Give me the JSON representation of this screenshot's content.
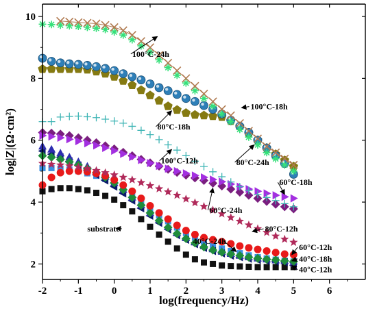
{
  "chart_data": {
    "type": "scatter",
    "title": "",
    "xlabel": "log(frequency/Hz)",
    "ylabel": "log|Z|(Ω·cm²)",
    "xlim": [
      -2,
      7
    ],
    "ylim": [
      1.5,
      10.4
    ],
    "x_ticks": [
      "-2",
      "-1",
      "0",
      "1",
      "2",
      "3",
      "4",
      "5",
      "6"
    ],
    "y_ticks": [
      "2",
      "4",
      "6",
      "8",
      "10"
    ],
    "grid": false,
    "legend": "none (inline annotations with arrows)",
    "x_values": [
      -2.0,
      -1.75,
      -1.5,
      -1.25,
      -1.0,
      -0.75,
      -0.5,
      -0.25,
      0.0,
      0.25,
      0.5,
      0.75,
      1.0,
      1.25,
      1.5,
      1.75,
      2.0,
      2.25,
      2.5,
      2.75,
      3.0,
      3.25,
      3.5,
      3.75,
      4.0,
      4.25,
      4.5,
      4.75,
      5.0
    ],
    "series": [
      {
        "name": "100°C-24h",
        "marker": "x",
        "color": "#b07a50",
        "values": [
          null,
          null,
          9.85,
          9.83,
          9.81,
          9.79,
          9.77,
          9.72,
          9.65,
          9.55,
          9.4,
          9.2,
          9.0,
          8.75,
          8.5,
          8.25,
          8.0,
          7.75,
          7.5,
          7.25,
          7.0,
          6.8,
          6.55,
          6.3,
          6.05,
          5.8,
          5.6,
          5.4,
          5.2
        ]
      },
      {
        "name": "",
        "marker": "star-burst",
        "color": "#35e07a",
        "values": [
          9.75,
          9.74,
          9.72,
          9.7,
          9.68,
          9.65,
          9.62,
          9.58,
          9.5,
          9.4,
          9.25,
          9.05,
          8.85,
          8.6,
          8.35,
          8.1,
          7.85,
          7.6,
          7.35,
          7.1,
          6.85,
          6.6,
          6.35,
          6.1,
          5.85,
          5.6,
          5.4,
          5.2,
          5.0
        ]
      },
      {
        "name": "100°C-18h",
        "marker": "sphere",
        "color": "#2e7fb8",
        "values": [
          8.65,
          8.55,
          8.5,
          8.47,
          8.45,
          8.42,
          8.38,
          8.32,
          8.25,
          8.15,
          8.05,
          7.95,
          7.82,
          7.7,
          7.6,
          7.48,
          7.35,
          7.25,
          7.12,
          7.0,
          6.85,
          6.65,
          6.45,
          6.25,
          6.0,
          5.75,
          5.5,
          5.25,
          4.9
        ]
      },
      {
        "name": "80°C-18h",
        "marker": "pentagon",
        "color": "#857a12",
        "values": [
          8.3,
          8.3,
          8.3,
          8.3,
          8.3,
          8.28,
          8.22,
          8.15,
          8.05,
          7.92,
          7.78,
          7.62,
          7.45,
          7.28,
          7.1,
          6.98,
          6.88,
          6.82,
          6.8,
          6.78,
          6.75,
          6.62,
          6.45,
          6.22,
          6.0,
          5.75,
          5.55,
          5.35,
          5.15
        ]
      },
      {
        "name": "100°C-12h",
        "marker": "plus",
        "color": "#3fb5b5",
        "values": [
          6.6,
          6.6,
          6.75,
          6.77,
          6.78,
          6.76,
          6.73,
          6.68,
          6.62,
          6.55,
          6.45,
          6.32,
          6.18,
          6.02,
          5.85,
          5.68,
          5.5,
          5.32,
          5.15,
          4.98,
          4.82,
          4.65,
          4.5,
          4.38,
          4.25,
          4.15,
          4.05,
          3.95,
          3.85
        ]
      },
      {
        "name": "60°C-18h",
        "marker": "triangle-right",
        "color": "#a32fe0",
        "values": [
          6.15,
          6.12,
          6.08,
          6.03,
          5.97,
          5.9,
          5.83,
          5.75,
          5.66,
          5.56,
          5.46,
          5.36,
          5.26,
          5.17,
          5.08,
          5.0,
          4.93,
          4.86,
          4.8,
          4.73,
          4.66,
          4.58,
          4.5,
          4.42,
          4.35,
          4.28,
          4.22,
          4.17,
          4.12
        ]
      },
      {
        "name": "60°C-24h",
        "marker": "diamond",
        "color": "#7a1e7f",
        "values": [
          6.25,
          6.23,
          6.2,
          6.15,
          6.08,
          6.0,
          5.92,
          5.82,
          5.72,
          5.61,
          5.5,
          5.38,
          5.27,
          5.16,
          5.06,
          4.96,
          4.87,
          4.78,
          4.7,
          4.61,
          4.52,
          4.42,
          4.32,
          4.22,
          4.12,
          4.02,
          3.93,
          3.85,
          3.78
        ]
      },
      {
        "name": "80°C-12h",
        "marker": "star",
        "color": "#b02a5a",
        "values": [
          5.25,
          5.22,
          5.2,
          5.17,
          5.13,
          5.08,
          5.02,
          4.95,
          4.88,
          4.8,
          4.72,
          4.63,
          4.53,
          4.43,
          4.33,
          4.22,
          4.1,
          3.98,
          3.86,
          3.74,
          3.62,
          3.5,
          3.38,
          3.26,
          3.14,
          3.02,
          2.9,
          2.8,
          2.7
        ]
      },
      {
        "name": "60°C-12h",
        "marker": "circle",
        "color": "#e81a1a",
        "values": [
          4.55,
          4.8,
          4.95,
          5.0,
          5.0,
          4.98,
          4.93,
          4.85,
          4.72,
          4.55,
          4.35,
          4.12,
          3.88,
          3.65,
          3.45,
          3.25,
          3.08,
          2.95,
          2.85,
          2.78,
          2.72,
          2.65,
          2.58,
          2.52,
          2.47,
          2.42,
          2.37,
          2.32,
          2.3
        ]
      },
      {
        "name": "40°C-24h",
        "marker": "diamond",
        "color": "#1f8c3c",
        "values": [
          5.5,
          5.45,
          5.38,
          5.3,
          5.2,
          5.08,
          4.95,
          4.8,
          4.62,
          4.4,
          4.15,
          3.9,
          3.65,
          3.4,
          3.18,
          2.98,
          2.82,
          2.68,
          2.55,
          2.45,
          2.38,
          2.32,
          2.27,
          2.22,
          2.18,
          2.15,
          2.13,
          2.1,
          2.08
        ]
      },
      {
        "name": "40°C-18h",
        "marker": "triangle-up",
        "color": "#2d2db0",
        "values": [
          5.8,
          5.7,
          5.58,
          5.45,
          5.3,
          5.15,
          5.0,
          4.82,
          4.62,
          4.4,
          4.15,
          3.9,
          3.65,
          3.42,
          3.2,
          3.0,
          2.84,
          2.7,
          2.58,
          2.48,
          2.4,
          2.33,
          2.27,
          2.22,
          2.18,
          2.15,
          2.12,
          2.1,
          2.08
        ]
      },
      {
        "name": "",
        "marker": "triangle-left",
        "color": "#0a1a6b",
        "values": [
          5.65,
          5.55,
          5.45,
          5.32,
          5.18,
          5.03,
          4.88,
          4.7,
          4.5,
          4.28,
          4.05,
          3.8,
          3.56,
          3.33,
          3.12,
          2.93,
          2.78,
          2.64,
          2.52,
          2.42,
          2.34,
          2.27,
          2.22,
          2.17,
          2.13,
          2.1,
          2.08,
          2.06,
          2.05
        ]
      },
      {
        "name": "",
        "marker": "square",
        "color": "#3c8fe0",
        "values": [
          5.1,
          5.1,
          5.08,
          5.05,
          5.0,
          4.93,
          4.85,
          4.75,
          4.62,
          4.45,
          4.25,
          4.02,
          3.8,
          3.58,
          3.38,
          3.18,
          3.0,
          2.85,
          2.72,
          2.6,
          2.5,
          2.42,
          2.35,
          2.28,
          2.22,
          2.18,
          2.14,
          2.1,
          2.08
        ]
      },
      {
        "name": "40°C-12h",
        "marker": "triangle-left",
        "color": "#2a1a80",
        "values": [
          null,
          null,
          null,
          null,
          null,
          null,
          null,
          null,
          null,
          null,
          null,
          null,
          null,
          null,
          null,
          null,
          null,
          null,
          null,
          null,
          null,
          null,
          null,
          null,
          null,
          null,
          null,
          null,
          1.95
        ]
      },
      {
        "name": "substrate",
        "marker": "square",
        "color": "#111111",
        "values": [
          4.35,
          4.42,
          4.45,
          4.45,
          4.42,
          4.38,
          4.3,
          4.2,
          4.08,
          3.9,
          3.7,
          3.45,
          3.2,
          2.95,
          2.72,
          2.5,
          2.3,
          2.15,
          2.05,
          2.0,
          1.95,
          1.93,
          1.92,
          1.91,
          1.9,
          1.9,
          1.9,
          1.9,
          1.9
        ]
      }
    ],
    "annotations": [
      {
        "text": "100°C-24h",
        "x": 0.5,
        "y": 8.7,
        "arrow_to": [
          1.2,
          9.35
        ],
        "series_ref": "100°C-24h"
      },
      {
        "text": "100°C-18h",
        "x": 3.8,
        "y": 7.0,
        "arrow_to": [
          3.55,
          7.05
        ],
        "series_ref": "100°C-18h"
      },
      {
        "text": "80°C-18h",
        "x": 1.2,
        "y": 6.35,
        "arrow_to": [
          1.6,
          6.95
        ],
        "series_ref": "80°C-18h"
      },
      {
        "text": "80°C-24h",
        "x": 3.4,
        "y": 5.2,
        "arrow_to": [
          3.9,
          5.85
        ],
        "series_ref": "80°C-24h"
      },
      {
        "text": "100°C-12h",
        "x": 1.3,
        "y": 5.25,
        "arrow_to": [
          1.6,
          5.7
        ],
        "series_ref": "100°C-12h"
      },
      {
        "text": "60°C-18h",
        "x": 4.6,
        "y": 4.55,
        "arrow_to": [
          4.75,
          4.25
        ],
        "series_ref": "60°C-18h"
      },
      {
        "text": "60°C-24h",
        "x": 2.65,
        "y": 3.65,
        "arrow_to": [
          2.75,
          4.45
        ],
        "series_ref": "60°C-24h"
      },
      {
        "text": "80°C-12h",
        "x": 4.2,
        "y": 3.05,
        "arrow_to": [
          3.85,
          3.05
        ],
        "series_ref": "80°C-12h"
      },
      {
        "text": "substrate",
        "x": -0.75,
        "y": 3.05,
        "arrow_to": [
          0.05,
          3.15
        ],
        "series_ref": "substrate"
      },
      {
        "text": "40°C-24h",
        "x": 2.2,
        "y": 2.65,
        "arrow_to": [
          3.4,
          2.4
        ],
        "series_ref": "40°C-24h"
      },
      {
        "text": "60°C-12h",
        "x": 5.15,
        "y": 2.45,
        "arrow_to": [
          4.95,
          2.3
        ],
        "series_ref": "60°C-12h"
      },
      {
        "text": "40°C-18h",
        "x": 5.15,
        "y": 2.08,
        "arrow_to": [
          4.95,
          2.1
        ],
        "series_ref": "40°C-18h"
      },
      {
        "text": "40°C-12h",
        "x": 5.15,
        "y": 1.73,
        "arrow_to": [
          4.95,
          1.95
        ],
        "series_ref": "40°C-12h"
      }
    ]
  }
}
